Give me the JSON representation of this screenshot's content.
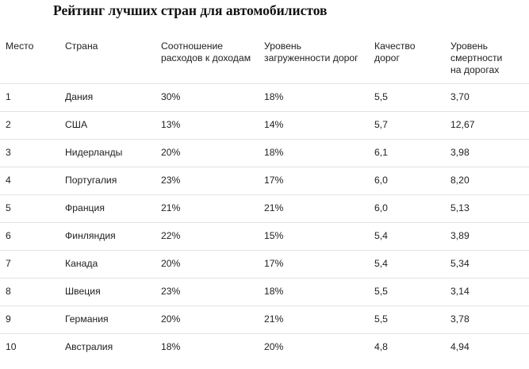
{
  "title": "Рейтинг лучших стран для автомобилистов",
  "table": {
    "headers": [
      "Место",
      "Страна",
      "Соотношение\nрасходов к доходам",
      "Уровень\nзагруженности дорог",
      "Качество\nдорог",
      "Уровень\nсмертности\nна дорогах"
    ],
    "rows": [
      [
        "1",
        "Дания",
        "30%",
        "18%",
        "5,5",
        "3,70"
      ],
      [
        "2",
        "США",
        "13%",
        "14%",
        "5,7",
        "12,67"
      ],
      [
        "3",
        "Нидерланды",
        "20%",
        "18%",
        "6,1",
        "3,98"
      ],
      [
        "4",
        "Португалия",
        "23%",
        "17%",
        "6,0",
        "8,20"
      ],
      [
        "5",
        "Франция",
        "21%",
        "21%",
        "6,0",
        "5,13"
      ],
      [
        "6",
        "Финляндия",
        "22%",
        "15%",
        "5,4",
        "3,89"
      ],
      [
        "7",
        "Канада",
        "20%",
        "17%",
        "5,4",
        "5,34"
      ],
      [
        "8",
        "Швеция",
        "23%",
        "18%",
        "5,5",
        "3,14"
      ],
      [
        "9",
        "Германия",
        "20%",
        "21%",
        "5,5",
        "3,78"
      ],
      [
        "10",
        "Австралия",
        "18%",
        "20%",
        "4,8",
        "4,94"
      ]
    ]
  }
}
